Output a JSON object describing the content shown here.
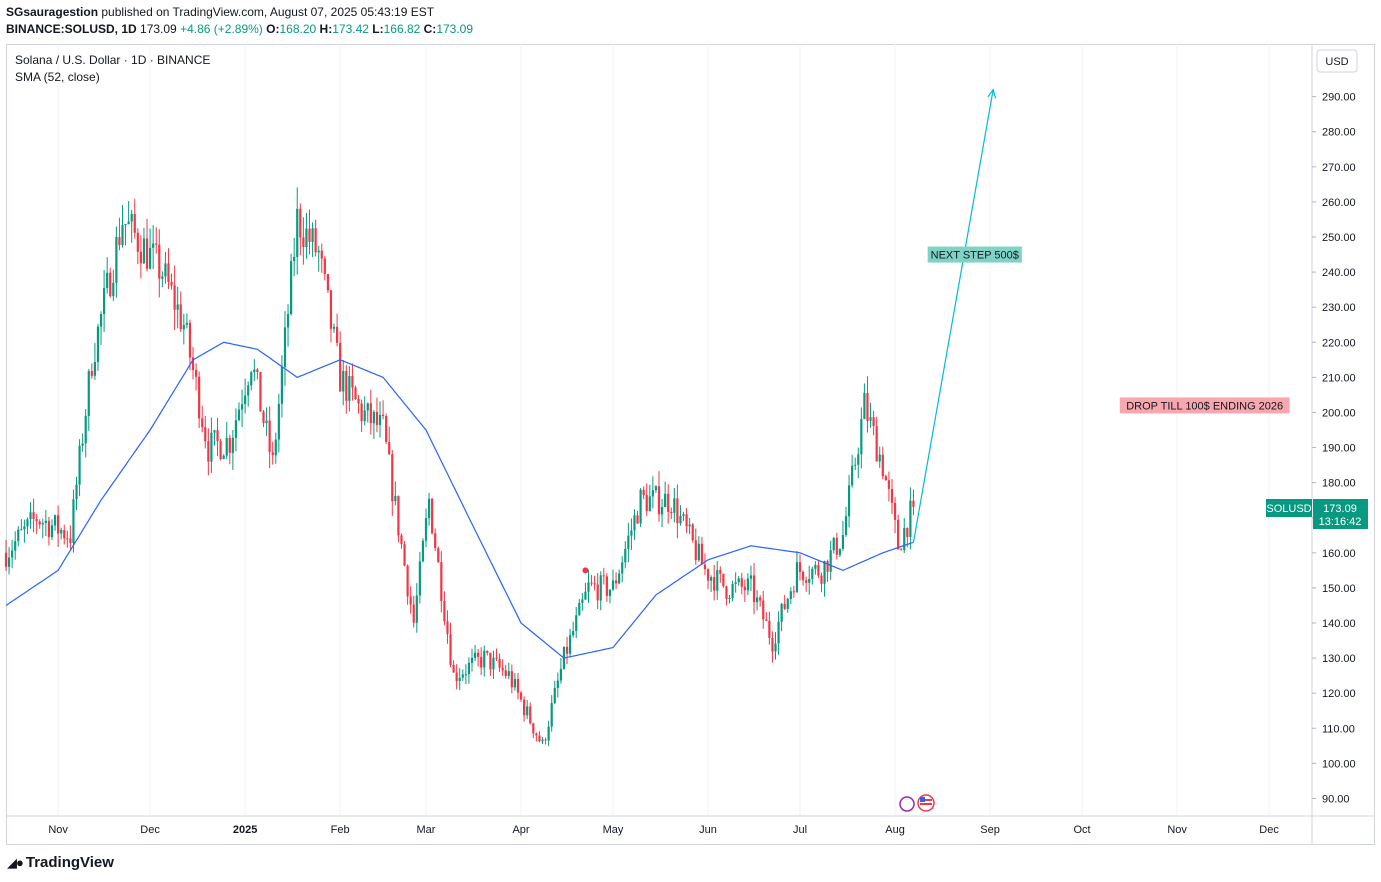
{
  "header": {
    "author": "SGsauragestion",
    "published_text": "published on TradingView.com, August 07, 2025 05:43:19 EST",
    "symbol": "BINANCE:SOLUSD, 1D",
    "last": "173.09",
    "change": "+4.86 (+2.89%)",
    "o_label": "O:",
    "o_value": "168.20",
    "h_label": "H:",
    "h_value": "173.42",
    "l_label": "L:",
    "l_value": "166.82",
    "c_label": "C:",
    "c_value": "173.09"
  },
  "legend": {
    "title": "Solana / U.S. Dollar · 1D · BINANCE",
    "indicator": "SMA (52, close)"
  },
  "price_label": {
    "symbol": "SOLUSD",
    "price": "173.09",
    "countdown": "13:16:42"
  },
  "currency": "USD",
  "brand": "TradingView",
  "colors": {
    "up": "#089981",
    "down": "#f23645",
    "sma": "#2962ff",
    "arrow": "#00bcd4"
  },
  "chart_data": {
    "type": "candlestick",
    "title": "Solana / U.S. Dollar · 1D · BINANCE",
    "ylim": [
      85,
      305
    ],
    "y_ticks": [
      "90.00",
      "100.00",
      "110.00",
      "120.00",
      "130.00",
      "140.00",
      "150.00",
      "160.00",
      "170.00",
      "180.00",
      "190.00",
      "200.00",
      "210.00",
      "220.00",
      "230.00",
      "240.00",
      "250.00",
      "260.00",
      "270.00",
      "280.00",
      "290.00"
    ],
    "x_ticks": [
      "Nov",
      "Dec",
      "2025",
      "Feb",
      "Mar",
      "Apr",
      "May",
      "Jun",
      "Jul",
      "Aug",
      "Sep",
      "Oct",
      "Nov",
      "Dec"
    ],
    "x_range": [
      "2024-10-15",
      "2025-12-15"
    ],
    "series": [
      {
        "name": "SOLUSD",
        "closes": [
          {
            "date": "2024-10-15",
            "value": 160
          },
          {
            "date": "2024-10-25",
            "value": 170
          },
          {
            "date": "2024-11-05",
            "value": 165
          },
          {
            "date": "2024-11-12",
            "value": 215
          },
          {
            "date": "2024-11-22",
            "value": 255
          },
          {
            "date": "2024-12-05",
            "value": 240
          },
          {
            "date": "2024-12-12",
            "value": 225
          },
          {
            "date": "2024-12-20",
            "value": 190
          },
          {
            "date": "2024-12-27",
            "value": 192
          },
          {
            "date": "2025-01-03",
            "value": 215
          },
          {
            "date": "2025-01-10",
            "value": 185
          },
          {
            "date": "2025-01-18",
            "value": 255
          },
          {
            "date": "2025-01-25",
            "value": 245
          },
          {
            "date": "2025-02-01",
            "value": 210
          },
          {
            "date": "2025-02-08",
            "value": 200
          },
          {
            "date": "2025-02-15",
            "value": 195
          },
          {
            "date": "2025-02-25",
            "value": 140
          },
          {
            "date": "2025-03-02",
            "value": 175
          },
          {
            "date": "2025-03-10",
            "value": 125
          },
          {
            "date": "2025-03-20",
            "value": 130
          },
          {
            "date": "2025-03-28",
            "value": 125
          },
          {
            "date": "2025-04-08",
            "value": 105
          },
          {
            "date": "2025-04-15",
            "value": 130
          },
          {
            "date": "2025-04-23",
            "value": 150
          },
          {
            "date": "2025-05-01",
            "value": 150
          },
          {
            "date": "2025-05-10",
            "value": 175
          },
          {
            "date": "2025-05-20",
            "value": 175
          },
          {
            "date": "2025-05-31",
            "value": 155
          },
          {
            "date": "2025-06-07",
            "value": 150
          },
          {
            "date": "2025-06-15",
            "value": 150
          },
          {
            "date": "2025-06-22",
            "value": 135
          },
          {
            "date": "2025-06-30",
            "value": 155
          },
          {
            "date": "2025-07-08",
            "value": 155
          },
          {
            "date": "2025-07-15",
            "value": 165
          },
          {
            "date": "2025-07-22",
            "value": 202
          },
          {
            "date": "2025-07-28",
            "value": 185
          },
          {
            "date": "2025-08-02",
            "value": 162
          },
          {
            "date": "2025-08-07",
            "value": 173.09
          }
        ]
      },
      {
        "name": "SMA (52, close)",
        "values": [
          {
            "date": "2024-10-15",
            "value": 145
          },
          {
            "date": "2024-11-01",
            "value": 155
          },
          {
            "date": "2024-11-15",
            "value": 175
          },
          {
            "date": "2024-12-01",
            "value": 195
          },
          {
            "date": "2024-12-15",
            "value": 215
          },
          {
            "date": "2024-12-25",
            "value": 220
          },
          {
            "date": "2025-01-05",
            "value": 218
          },
          {
            "date": "2025-01-18",
            "value": 210
          },
          {
            "date": "2025-02-01",
            "value": 215
          },
          {
            "date": "2025-02-15",
            "value": 210
          },
          {
            "date": "2025-03-01",
            "value": 195
          },
          {
            "date": "2025-03-15",
            "value": 170
          },
          {
            "date": "2025-04-01",
            "value": 140
          },
          {
            "date": "2025-04-15",
            "value": 130
          },
          {
            "date": "2025-05-01",
            "value": 133
          },
          {
            "date": "2025-05-15",
            "value": 148
          },
          {
            "date": "2025-06-01",
            "value": 158
          },
          {
            "date": "2025-06-15",
            "value": 162
          },
          {
            "date": "2025-07-01",
            "value": 160
          },
          {
            "date": "2025-07-15",
            "value": 155
          },
          {
            "date": "2025-07-28",
            "value": 160
          },
          {
            "date": "2025-08-07",
            "value": 163
          }
        ]
      }
    ],
    "annotations": [
      {
        "text": "NEXT STEP 500$",
        "date": "2025-08-27",
        "value": 245,
        "color": "#00bcd4"
      },
      {
        "text": "DROP TILL 100$ ENDING 2026",
        "date": "2025-11-10",
        "value": 202,
        "color": "#f23645"
      }
    ],
    "arrow": {
      "from": {
        "date": "2025-08-07",
        "value": 163
      },
      "to": {
        "date": "2025-09-02",
        "value": 292
      }
    },
    "marker": {
      "date": "2025-04-22",
      "value": 155,
      "color": "#f23645"
    }
  }
}
